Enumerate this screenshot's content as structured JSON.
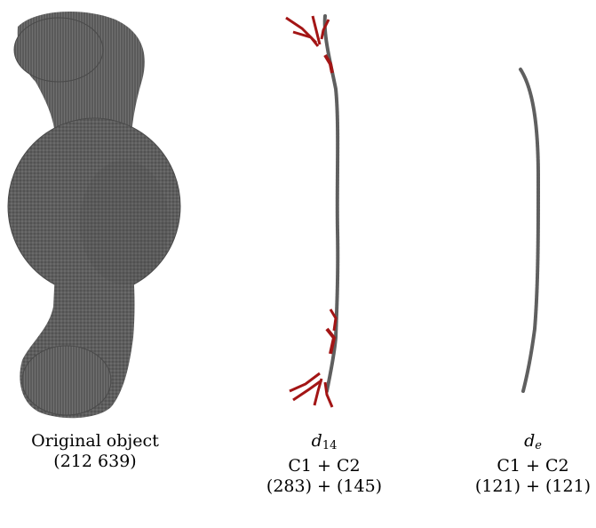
{
  "colors": {
    "voxel": "#5e5e5e",
    "voxel_dark": "#3f3f3f",
    "voxel_light": "#858585",
    "skeleton": "#5f5f5f",
    "branch": "#a31515"
  },
  "panels": [
    {
      "title": "Original object",
      "count": "(212 639)"
    },
    {
      "symbol_base": "d",
      "symbol_sub": "14",
      "components": "C1 + C2",
      "counts": "(283) + (145)"
    },
    {
      "symbol_base": "d",
      "symbol_sub": "e",
      "components": "C1 + C2",
      "counts": "(121) + (121)"
    }
  ]
}
